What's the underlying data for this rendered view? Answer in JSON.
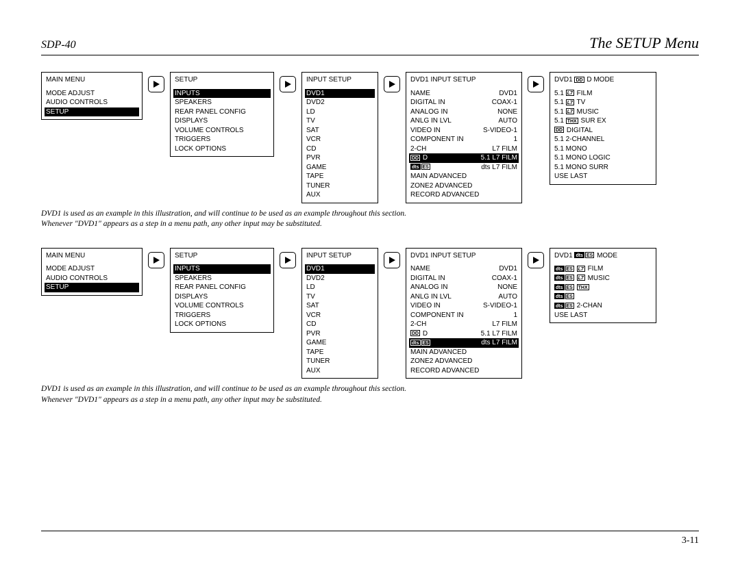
{
  "header": {
    "left": "SDP-40",
    "right": "The SETUP Menu"
  },
  "footer": {
    "page": "3-11"
  },
  "caption": "DVD1 is used as an example in this illustration, and will continue to be used as an example throughout this section. Whenever \"DVD1\" appears as a step in a menu path, any other input may be substituted.",
  "row1": {
    "box1": {
      "title": "MAIN MENU",
      "items": [
        "MODE ADJUST",
        "AUDIO CONTROLS",
        "SETUP"
      ],
      "highlight": "SETUP"
    },
    "box2": {
      "title": "SETUP",
      "items": [
        "INPUTS",
        "SPEAKERS",
        "REAR PANEL CONFIG",
        "DISPLAYS",
        "VOLUME CONTROLS",
        "TRIGGERS",
        "LOCK OPTIONS"
      ],
      "highlight": "INPUTS"
    },
    "box3": {
      "title": "INPUT SETUP",
      "items": [
        "DVD1",
        "DVD2",
        "LD",
        "TV",
        "SAT",
        "VCR",
        "CD",
        "PVR",
        "GAME",
        "TAPE",
        "TUNER",
        "AUX"
      ],
      "highlight": "DVD1"
    },
    "box4": {
      "title": "DVD1 INPUT SETUP",
      "kv": [
        {
          "k": "NAME",
          "v": "DVD1"
        },
        {
          "k": "DIGITAL IN",
          "v": "COAX-1"
        },
        {
          "k": "ANALOG IN",
          "v": "NONE"
        },
        {
          "k": "ANLG IN LVL",
          "v": "AUTO"
        },
        {
          "k": "VIDEO IN",
          "v": "S-VIDEO-1"
        },
        {
          "k": "COMPONENT IN",
          "v": "1"
        },
        {
          "k": "2-CH",
          "v": "L7 FILM"
        },
        {
          "k": "DD_D",
          "v": "5.1 L7 FILM",
          "hl": true
        },
        {
          "k": "DTS_ES",
          "v": "dts L7 FILM"
        }
      ],
      "extra": [
        "MAIN ADVANCED",
        "ZONE2 ADVANCED",
        "RECORD ADVANCED"
      ]
    },
    "box5": {
      "title": "DVD1 DD D MODE",
      "items": [
        "5.1 L7 FILM",
        "5.1 L7 TV",
        "5.1 L7 MUSIC",
        "5.1 THX SUR EX",
        "DD DIGITAL",
        "5.1 2-CHANNEL",
        "5.1 MONO",
        "5.1 MONO LOGIC",
        "5.1 MONO SURR",
        "USE LAST"
      ]
    }
  },
  "row2": {
    "box1": {
      "title": "MAIN MENU",
      "items": [
        "MODE ADJUST",
        "AUDIO CONTROLS",
        "SETUP"
      ],
      "highlight": "SETUP"
    },
    "box2": {
      "title": "SETUP",
      "items": [
        "INPUTS",
        "SPEAKERS",
        "REAR PANEL CONFIG",
        "DISPLAYS",
        "VOLUME CONTROLS",
        "TRIGGERS",
        "LOCK OPTIONS"
      ],
      "highlight": "INPUTS"
    },
    "box3": {
      "title": "INPUT SETUP",
      "items": [
        "DVD1",
        "DVD2",
        "LD",
        "TV",
        "SAT",
        "VCR",
        "CD",
        "PVR",
        "GAME",
        "TAPE",
        "TUNER",
        "AUX"
      ],
      "highlight": "DVD1"
    },
    "box4": {
      "title": "DVD1 INPUT SETUP",
      "kv": [
        {
          "k": "NAME",
          "v": "DVD1"
        },
        {
          "k": "DIGITAL IN",
          "v": "COAX-1"
        },
        {
          "k": "ANALOG IN",
          "v": "NONE"
        },
        {
          "k": "ANLG IN LVL",
          "v": "AUTO"
        },
        {
          "k": "VIDEO IN",
          "v": "S-VIDEO-1"
        },
        {
          "k": "COMPONENT IN",
          "v": "1"
        },
        {
          "k": "2-CH",
          "v": "L7 FILM"
        },
        {
          "k": "DD_D",
          "v": "5.1 L7 FILM"
        },
        {
          "k": "DTS_ES",
          "v": "dts L7 FILM",
          "hl": true
        }
      ],
      "extra": [
        "MAIN ADVANCED",
        "ZONE2 ADVANCED",
        "RECORD ADVANCED"
      ]
    },
    "box5": {
      "title": "DVD1 DTS ES MODE",
      "items": [
        "DTS ES L7 FILM",
        "DTS ES L7 MUSIC",
        "DTS ES THX",
        "DTS ES",
        "DTS ES 2-CHAN",
        "USE LAST"
      ]
    }
  }
}
